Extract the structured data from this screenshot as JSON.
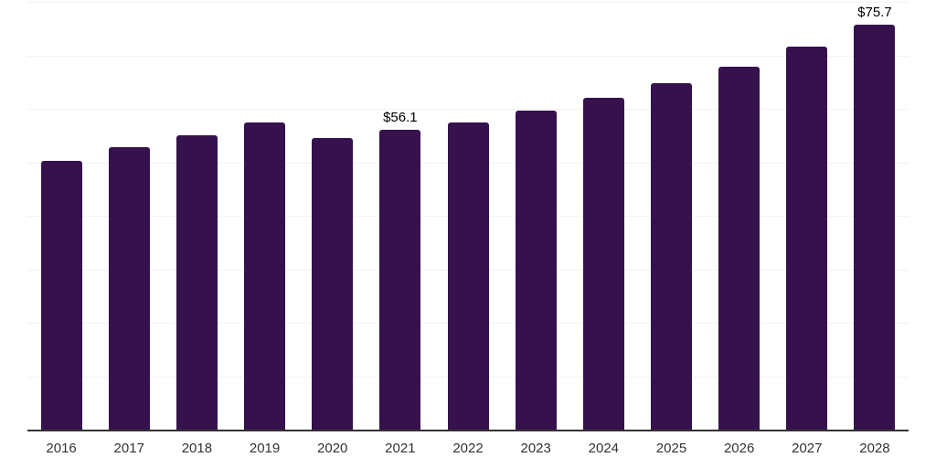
{
  "chart_data": {
    "type": "bar",
    "title": "",
    "xlabel": "",
    "ylabel": "",
    "categories": [
      "2016",
      "2017",
      "2018",
      "2019",
      "2020",
      "2021",
      "2022",
      "2023",
      "2024",
      "2025",
      "2026",
      "2027",
      "2028"
    ],
    "values": [
      50.3,
      52.8,
      55.1,
      57.5,
      54.5,
      56.1,
      57.5,
      59.6,
      62.0,
      64.8,
      67.8,
      71.6,
      75.7
    ],
    "bar_labels": [
      "",
      "",
      "",
      "",
      "",
      "$56.1",
      "",
      "",
      "",
      "",
      "",
      "",
      "$75.7"
    ],
    "ylim": [
      0,
      80
    ],
    "gridline_step": 10,
    "grid": "horizontal",
    "y_tick_labels_visible": false,
    "legend_position": "none",
    "colors": {
      "bar": "#35124d",
      "gridline": "#f2f2f2",
      "axis_line": "#333333",
      "bar_label_text": "#000000",
      "tick_label_text": "#333333",
      "background": "#ffffff"
    }
  }
}
